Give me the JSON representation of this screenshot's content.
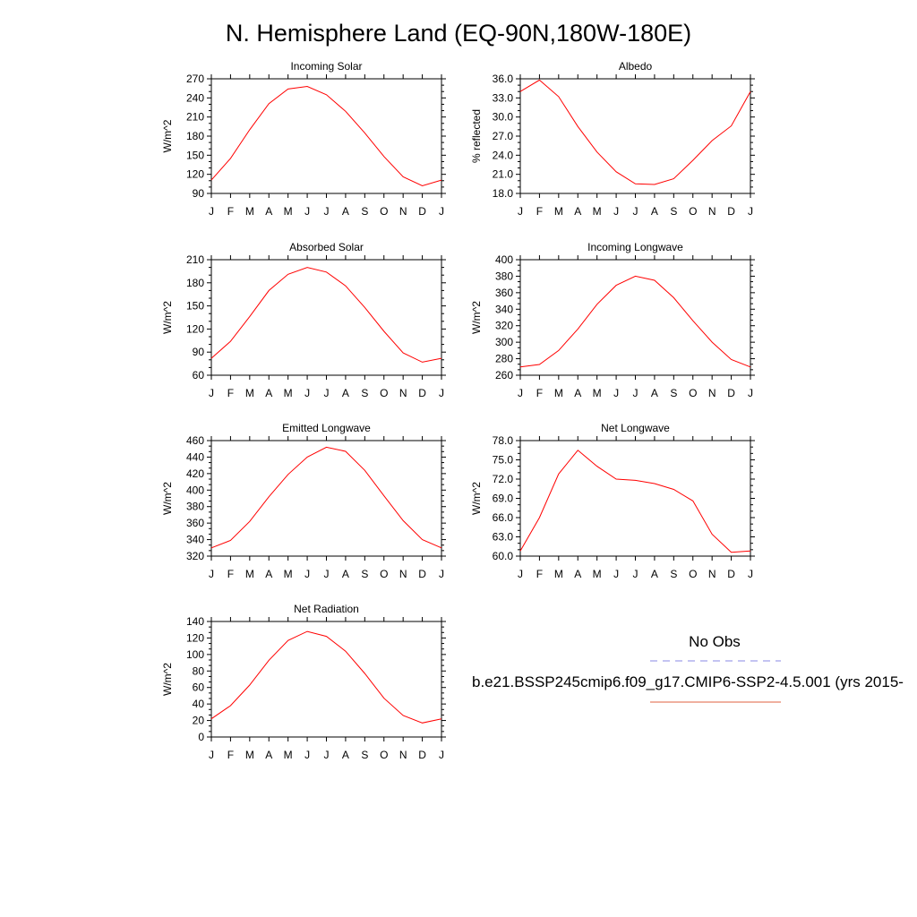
{
  "page_title": "N. Hemisphere Land (EQ-90N,180W-180E)",
  "month_labels": [
    "J",
    "F",
    "M",
    "A",
    "M",
    "J",
    "J",
    "A",
    "S",
    "O",
    "N",
    "D",
    "J"
  ],
  "legend": {
    "obs_label": "No Obs",
    "obs_color": "#8a8ae6",
    "model_label": "b.e21.BSSP245cmip6.f09_g17.CMIP6-SSP2-4.5.001 (yrs 2015-",
    "model_color": "#e06040"
  },
  "line_color": "#ff0000",
  "chart_data": [
    {
      "type": "line",
      "title": "Incoming Solar",
      "ylabel": "W/m^2",
      "ylim": [
        90,
        270
      ],
      "yticks": [
        90,
        120,
        150,
        180,
        210,
        240,
        270
      ],
      "ytick_labels": [
        "90",
        "120",
        "150",
        "180",
        "210",
        "240",
        "270"
      ],
      "series": [
        {
          "values": [
            111,
            145,
            190,
            231,
            254,
            258,
            245,
            219,
            185,
            148,
            116,
            102,
            111
          ]
        }
      ]
    },
    {
      "type": "line",
      "title": "Albedo",
      "ylabel": "% reflected",
      "ylim": [
        18.0,
        36.0
      ],
      "yticks": [
        18,
        21,
        24,
        27,
        30,
        33,
        36
      ],
      "ytick_labels": [
        "18.0",
        "21.0",
        "24.0",
        "27.0",
        "30.0",
        "33.0",
        "36.0"
      ],
      "series": [
        {
          "values": [
            34.0,
            35.8,
            33.2,
            28.5,
            24.5,
            21.4,
            19.5,
            19.4,
            20.3,
            23.2,
            26.3,
            28.6,
            34.0
          ]
        }
      ]
    },
    {
      "type": "line",
      "title": "Absorbed Solar",
      "ylabel": "W/m^2",
      "ylim": [
        60,
        210
      ],
      "yticks": [
        60,
        90,
        120,
        150,
        180,
        210
      ],
      "ytick_labels": [
        "60",
        "90",
        "120",
        "150",
        "180",
        "210"
      ],
      "series": [
        {
          "values": [
            82,
            104,
            136,
            170,
            191,
            200,
            194,
            176,
            148,
            117,
            89,
            77,
            82
          ]
        }
      ]
    },
    {
      "type": "line",
      "title": "Incoming Longwave",
      "ylabel": "W/m^2",
      "ylim": [
        260,
        400
      ],
      "yticks": [
        260,
        280,
        300,
        320,
        340,
        360,
        380,
        400
      ],
      "ytick_labels": [
        "260",
        "280",
        "300",
        "320",
        "340",
        "360",
        "380",
        "400"
      ],
      "series": [
        {
          "values": [
            270,
            273,
            290,
            316,
            346,
            369,
            380,
            375,
            354,
            326,
            300,
            279,
            270
          ]
        }
      ]
    },
    {
      "type": "line",
      "title": "Emitted Longwave",
      "ylabel": "W/m^2",
      "ylim": [
        320,
        460
      ],
      "yticks": [
        320,
        340,
        360,
        380,
        400,
        420,
        440,
        460
      ],
      "ytick_labels": [
        "320",
        "340",
        "360",
        "380",
        "400",
        "420",
        "440",
        "460"
      ],
      "series": [
        {
          "values": [
            330,
            339,
            362,
            392,
            419,
            440,
            452,
            447,
            424,
            393,
            363,
            340,
            330
          ]
        }
      ]
    },
    {
      "type": "line",
      "title": "Net Longwave",
      "ylabel": "W/m^2",
      "ylim": [
        60.0,
        78.0
      ],
      "yticks": [
        60,
        63,
        66,
        69,
        72,
        75,
        78
      ],
      "ytick_labels": [
        "60.0",
        "63.0",
        "66.0",
        "69.0",
        "72.0",
        "75.0",
        "78.0"
      ],
      "series": [
        {
          "values": [
            60.8,
            66.0,
            72.8,
            76.5,
            74.0,
            72.0,
            71.8,
            71.3,
            70.4,
            68.6,
            63.4,
            60.6,
            60.8
          ]
        }
      ]
    },
    {
      "type": "line",
      "title": "Net Radiation",
      "ylabel": "W/m^2",
      "ylim": [
        0,
        140
      ],
      "yticks": [
        0,
        20,
        40,
        60,
        80,
        100,
        120,
        140
      ],
      "ytick_labels": [
        "0",
        "20",
        "40",
        "60",
        "80",
        "100",
        "120",
        "140"
      ],
      "series": [
        {
          "values": [
            22,
            38,
            63,
            93,
            117,
            128,
            122,
            104,
            77,
            47,
            26,
            17,
            22
          ]
        }
      ]
    }
  ]
}
